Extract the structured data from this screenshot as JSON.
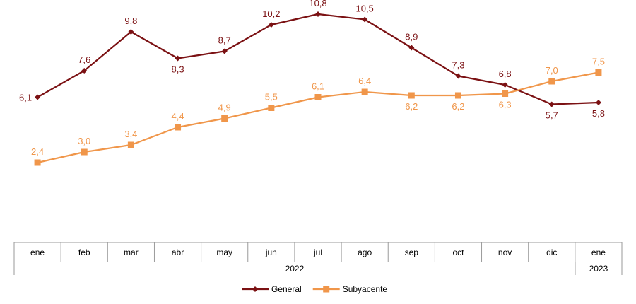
{
  "chart_data": {
    "type": "line",
    "categories": [
      "ene",
      "feb",
      "mar",
      "abr",
      "may",
      "jun",
      "jul",
      "ago",
      "sep",
      "oct",
      "nov",
      "dic",
      "ene"
    ],
    "year_groups": [
      {
        "label": "2022",
        "start": 0,
        "end": 11
      },
      {
        "label": "2023",
        "start": 12,
        "end": 12
      }
    ],
    "series": [
      {
        "name": "General",
        "color": "#7b1113",
        "marker": "diamond",
        "values": [
          6.1,
          7.6,
          9.8,
          8.3,
          8.7,
          10.2,
          10.8,
          10.5,
          8.9,
          7.3,
          6.8,
          5.7,
          5.8
        ],
        "labels": [
          "6,1",
          "7,6",
          "9,8",
          "8,3",
          "8,7",
          "10,2",
          "10,8",
          "10,5",
          "8,9",
          "7,3",
          "6,8",
          "5,7",
          "5,8"
        ]
      },
      {
        "name": "Subyacente",
        "color": "#f0964a",
        "marker": "square",
        "values": [
          2.4,
          3.0,
          3.4,
          4.4,
          4.9,
          5.5,
          6.1,
          6.4,
          6.2,
          6.2,
          6.3,
          7.0,
          7.5
        ],
        "labels": [
          "2,4",
          "3,0",
          "3,4",
          "4,4",
          "4,9",
          "5,5",
          "6,1",
          "6,4",
          "6,2",
          "6,2",
          "6,3",
          "7,0",
          "7,5"
        ]
      }
    ],
    "ylim": [
      0,
      11
    ],
    "grid": false,
    "legend": "bottom-center"
  }
}
